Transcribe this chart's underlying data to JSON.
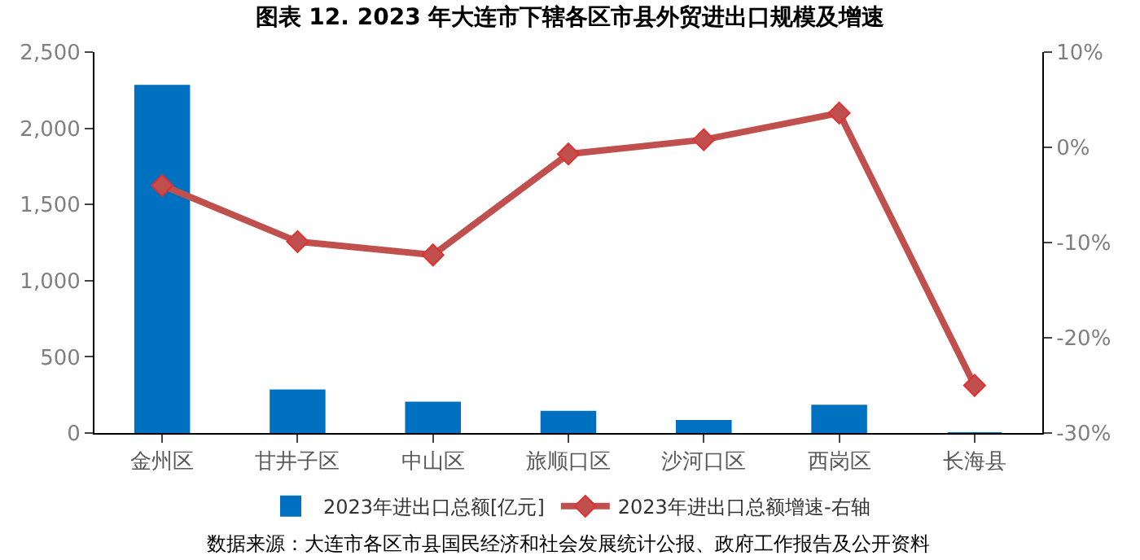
{
  "chart_data": {
    "type": "bar",
    "title": "图表 12. 2023 年大连市下辖各区市县外贸进出口规模及增速",
    "categories": [
      "金州区",
      "甘井子区",
      "中山区",
      "旅顺口区",
      "沙河口区",
      "西岗区",
      "长海县"
    ],
    "series": [
      {
        "name": "2023年进出口总额[亿元]",
        "color": "#0070c0",
        "values": [
          2280,
          280,
          200,
          140,
          80,
          180,
          0
        ]
      },
      {
        "name": "2023年进出口总额增速-右轴",
        "type": "line",
        "axis": "y2",
        "color": "#c0504d",
        "marker": "diamond",
        "values": [
          -4.0,
          -9.9,
          -11.3,
          -0.7,
          0.8,
          3.6,
          -25.0
        ]
      }
    ],
    "ylim": [
      0,
      2500
    ],
    "yticks": [
      {
        "value": 0,
        "label": "0"
      },
      {
        "value": 500,
        "label": "500"
      },
      {
        "value": 1000,
        "label": "1,000"
      },
      {
        "value": 1500,
        "label": "1,500"
      },
      {
        "value": 2000,
        "label": "2,000"
      },
      {
        "value": 2500,
        "label": "2,500"
      }
    ],
    "y2lim": [
      -30,
      10
    ],
    "y2ticks": [
      {
        "value": -30,
        "label": "-30%"
      },
      {
        "value": -20,
        "label": "-20%"
      },
      {
        "value": -10,
        "label": "-10%"
      },
      {
        "value": 0,
        "label": "0%"
      },
      {
        "value": 10,
        "label": "10%"
      }
    ],
    "legend": "bottom",
    "annotations": [
      "数据来源：大连市各区市县国民经济和社会发展统计公报、政府工作报告及公开资料"
    ]
  }
}
